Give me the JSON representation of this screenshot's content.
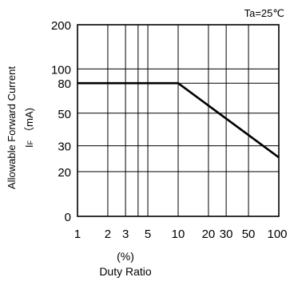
{
  "chart_data": {
    "type": "line",
    "x_scale": "log",
    "y_scale": "custom",
    "annotation": "Ta=25℃",
    "ylabel_line1": "Allowable Forward Current",
    "ylabel_line2": "I",
    "ylabel_sub": "F",
    "ylabel_unit": "（mA)",
    "xlabel_line1": "(%)",
    "xlabel_line2": "Duty Ratio",
    "xlim": [
      1,
      100
    ],
    "ylim": [
      0,
      200
    ],
    "x_ticks": [
      {
        "value": 1,
        "label": "1"
      },
      {
        "value": 2,
        "label": "2"
      },
      {
        "value": 3,
        "label": "3"
      },
      {
        "value": 5,
        "label": "5"
      },
      {
        "value": 10,
        "label": "10"
      },
      {
        "value": 20,
        "label": "20"
      },
      {
        "value": 30,
        "label": "30"
      },
      {
        "value": 50,
        "label": "50"
      },
      {
        "value": 100,
        "label": "100"
      }
    ],
    "x_grid": [
      2,
      3,
      4,
      5,
      10,
      20,
      30,
      50,
      100
    ],
    "y_ticks": [
      {
        "value": 0,
        "label": "0"
      },
      {
        "value": 20,
        "label": "20"
      },
      {
        "value": 30,
        "label": "30"
      },
      {
        "value": 50,
        "label": "50"
      },
      {
        "value": 80,
        "label": "80"
      },
      {
        "value": 100,
        "label": "100"
      },
      {
        "value": 200,
        "label": "200"
      }
    ],
    "y_grid": [
      0,
      20,
      30,
      50,
      80,
      100,
      200
    ],
    "grid": true,
    "series": [
      {
        "x": [
          1,
          10,
          100
        ],
        "y": [
          80,
          80,
          25
        ]
      }
    ]
  }
}
